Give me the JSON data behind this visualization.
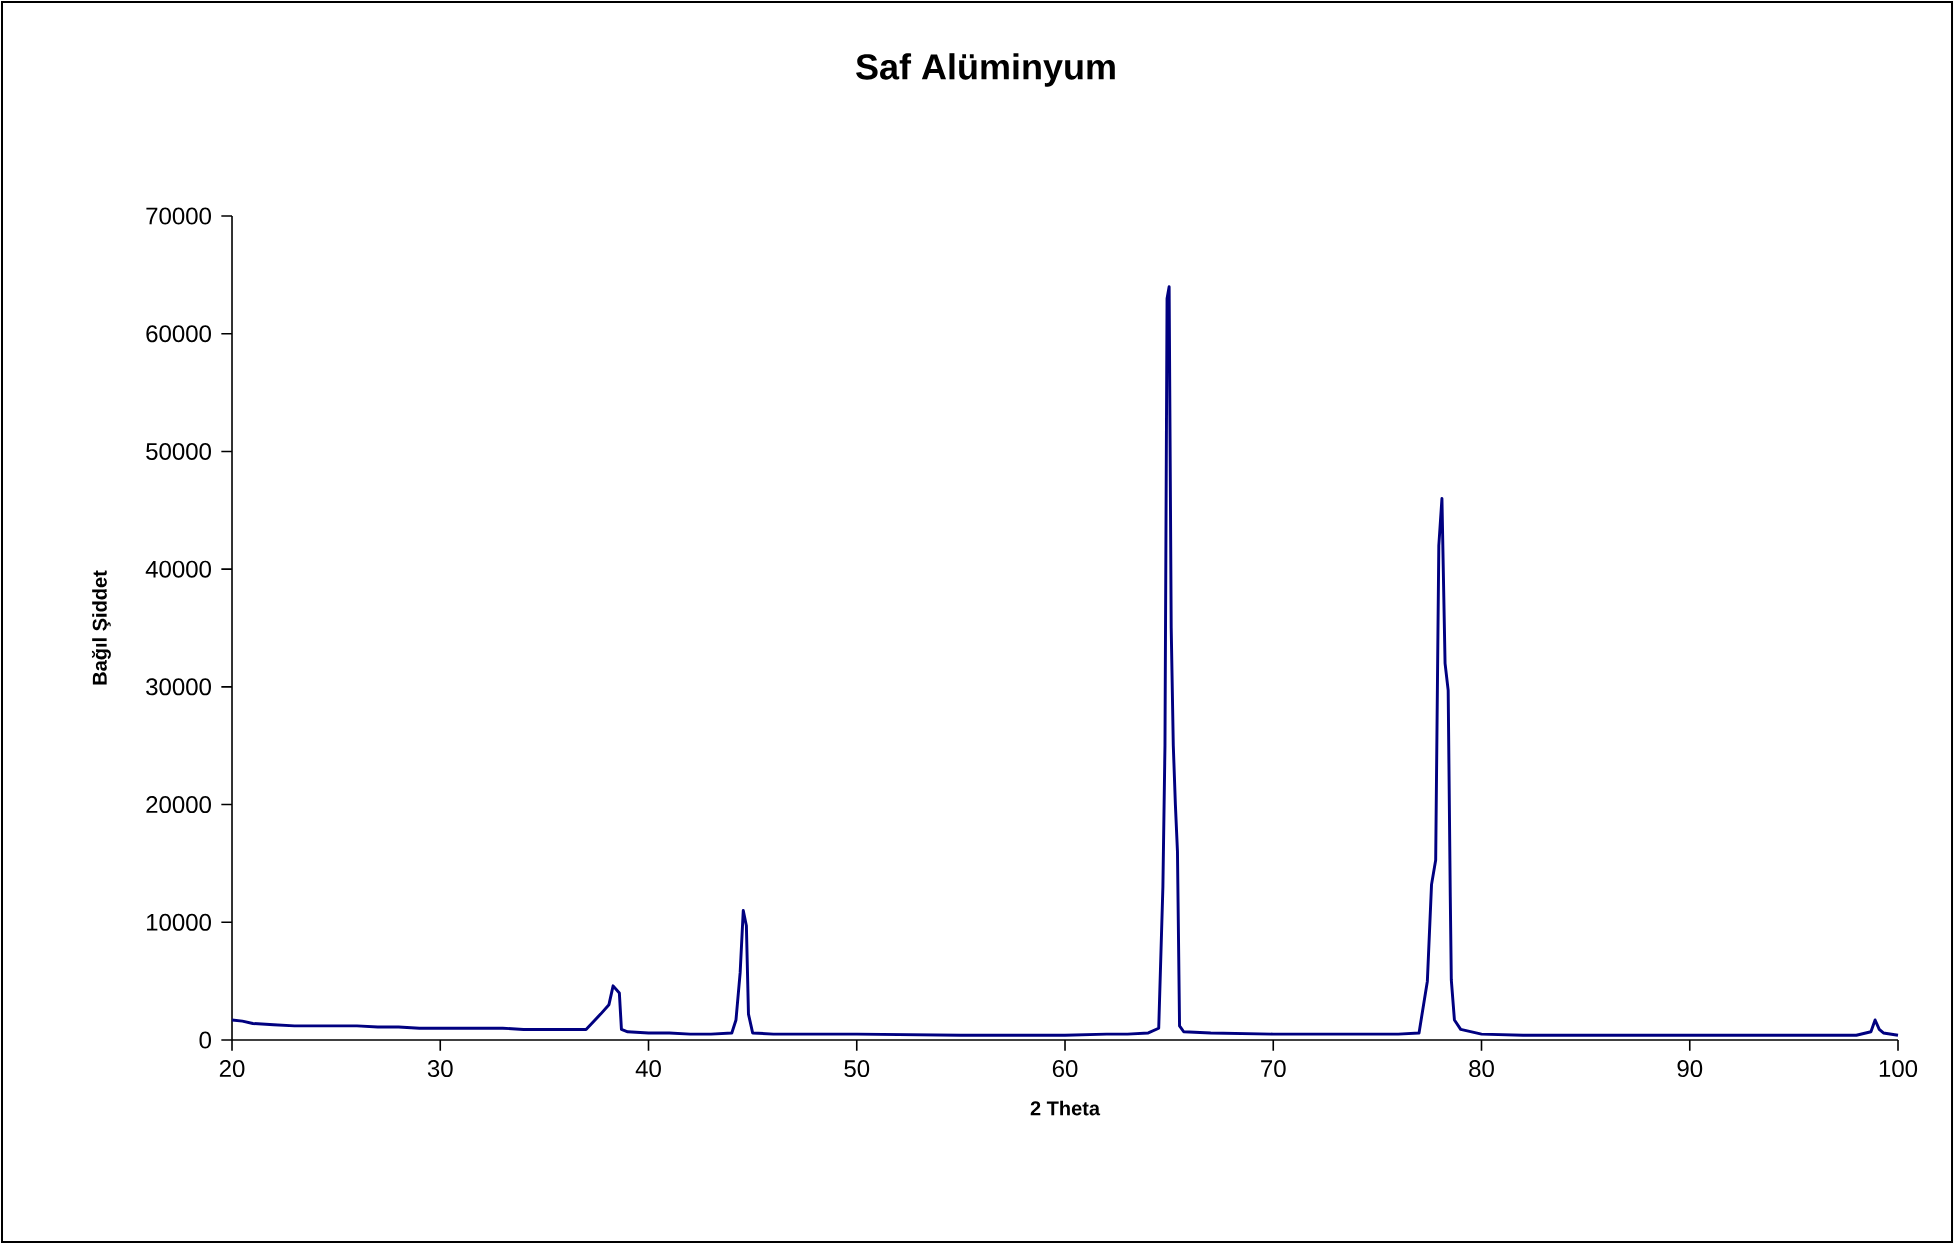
{
  "chart_data": {
    "type": "line",
    "title": "Saf Alüminyum",
    "xlabel": "2 Theta",
    "ylabel": "Bağıl Şiddet",
    "grid": false,
    "legend": false,
    "marker": "none",
    "line_style": "solid",
    "xlim": [
      20,
      100
    ],
    "xticks": [
      20,
      30,
      40,
      50,
      60,
      70,
      80,
      90,
      100
    ],
    "ylim": [
      0,
      70000
    ],
    "yticks": [
      0,
      10000,
      20000,
      30000,
      40000,
      50000,
      60000,
      70000
    ],
    "series": [
      {
        "color": "#000080",
        "x": [
          20,
          20.5,
          21,
          22,
          23,
          24,
          25,
          26,
          27,
          28,
          29,
          30,
          31,
          32,
          33,
          34,
          35,
          36,
          37,
          37.7,
          38.1,
          38.3,
          38.6,
          38.7,
          39,
          40,
          41,
          42,
          43,
          44,
          44.2,
          44.4,
          44.55,
          44.7,
          44.8,
          45,
          46,
          48,
          50,
          55,
          60,
          62,
          63,
          64,
          64.5,
          64.7,
          64.8,
          64.9,
          65.0,
          65.1,
          65.2,
          65.3,
          65.4,
          65.5,
          65.7,
          67,
          70,
          74,
          76,
          77,
          77.4,
          77.6,
          77.8,
          77.95,
          78.1,
          78.25,
          78.4,
          78.5,
          78.55,
          78.7,
          79,
          80,
          82,
          85,
          90,
          95,
          98,
          98.7,
          98.9,
          99.1,
          99.3,
          100
        ],
        "values": [
          1700,
          1600,
          1400,
          1300,
          1200,
          1200,
          1200,
          1200,
          1100,
          1100,
          1000,
          1000,
          1000,
          1000,
          1000,
          900,
          900,
          900,
          900,
          2200,
          3000,
          4600,
          4000,
          900,
          700,
          600,
          600,
          500,
          500,
          600,
          1700,
          5700,
          11000,
          9700,
          2200,
          600,
          500,
          500,
          500,
          400,
          400,
          500,
          500,
          600,
          1000,
          13000,
          25000,
          63000,
          64000,
          35000,
          25000,
          20000,
          16000,
          1200,
          700,
          600,
          500,
          500,
          500,
          600,
          5000,
          13200,
          15300,
          42000,
          46000,
          32000,
          29700,
          12200,
          5100,
          1700,
          900,
          500,
          400,
          400,
          400,
          400,
          400,
          700,
          1700,
          900,
          600,
          400
        ]
      }
    ]
  }
}
